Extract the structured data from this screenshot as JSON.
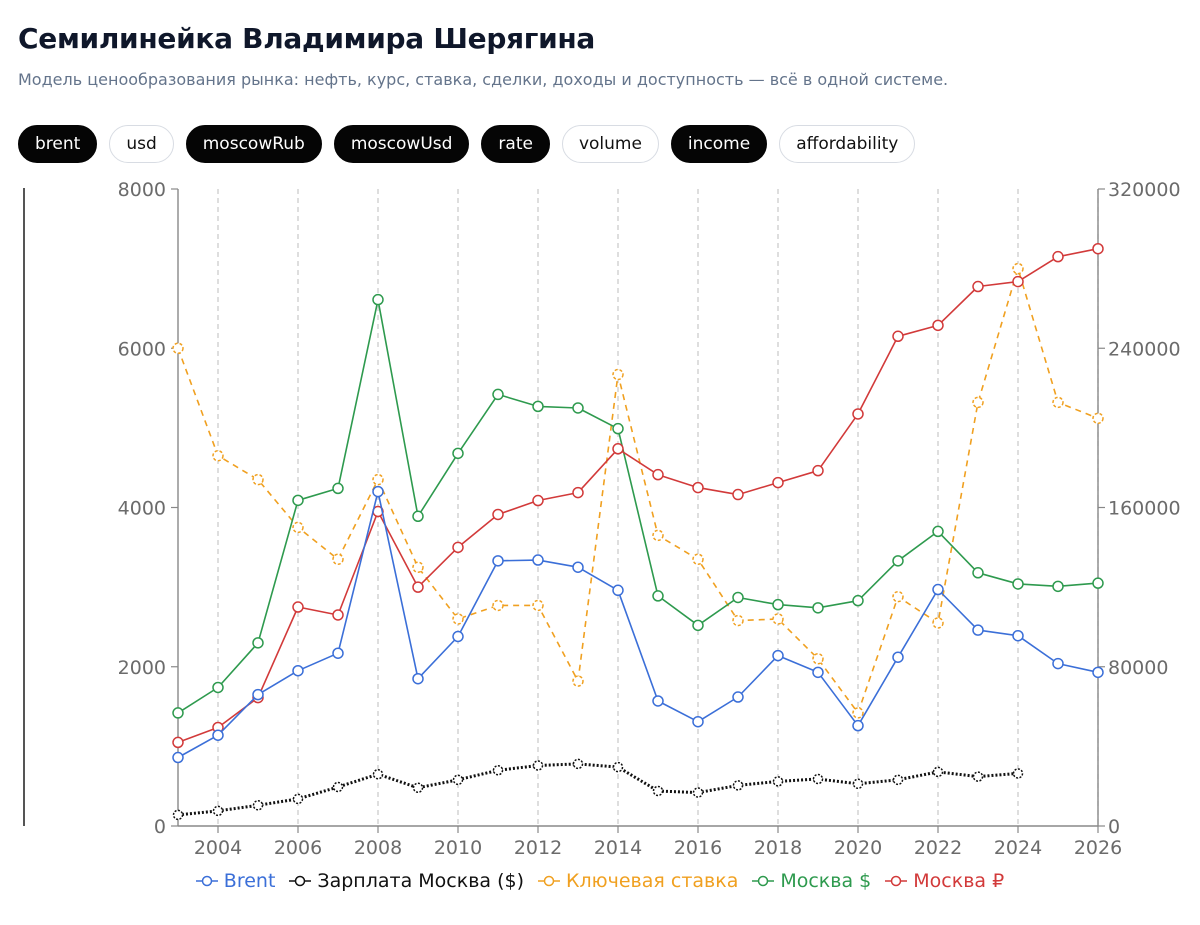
{
  "header": {
    "title": "Семилинейка Владимира Шерягина",
    "subtitle": "Модель ценообразования рынка: нефть, курс, ставка, сделки, доходы и доступность — всё в одной системе."
  },
  "toggles": [
    {
      "key": "brent",
      "label": "brent",
      "active": true
    },
    {
      "key": "usd",
      "label": "usd",
      "active": false
    },
    {
      "key": "moscowRub",
      "label": "moscowRub",
      "active": true
    },
    {
      "key": "moscowUsd",
      "label": "moscowUsd",
      "active": true
    },
    {
      "key": "rate",
      "label": "rate",
      "active": true
    },
    {
      "key": "volume",
      "label": "volume",
      "active": false
    },
    {
      "key": "income",
      "label": "income",
      "active": true
    },
    {
      "key": "affordability",
      "label": "affordability",
      "active": false
    }
  ],
  "chart_data": {
    "type": "line",
    "x": [
      2003,
      2004,
      2005,
      2006,
      2007,
      2008,
      2009,
      2010,
      2011,
      2012,
      2013,
      2014,
      2015,
      2016,
      2017,
      2018,
      2019,
      2020,
      2021,
      2022,
      2023,
      2024,
      2025,
      2026
    ],
    "xlim": [
      2003,
      2026
    ],
    "x_ticks": [
      "2004",
      "2006",
      "2008",
      "2010",
      "2012",
      "2014",
      "2016",
      "2018",
      "2020",
      "2022",
      "2024",
      "2026"
    ],
    "y_left": {
      "lim": [
        0,
        8000
      ],
      "ticks": [
        "0",
        "2000",
        "4000",
        "6000",
        "8000"
      ]
    },
    "y_right": {
      "lim": [
        0,
        320000
      ],
      "ticks": [
        "0",
        "80000",
        "160000",
        "240000",
        "320000"
      ]
    },
    "grid": "vertical dashed",
    "legend_position": "bottom-center",
    "series": [
      {
        "name": "Brent",
        "axis": "left",
        "color": "#3b6fd8",
        "style": "solid",
        "values": [
          860,
          1140,
          1650,
          1950,
          2170,
          4200,
          1850,
          2380,
          3330,
          3340,
          3250,
          2960,
          1570,
          1310,
          1620,
          2140,
          1930,
          1260,
          2120,
          2970,
          2460,
          2390,
          2040,
          1930
        ]
      },
      {
        "name": "Зарплата Москва ($)",
        "axis": "left",
        "color": "#111111",
        "style": "dotted",
        "values": [
          140,
          190,
          260,
          340,
          490,
          650,
          480,
          580,
          700,
          760,
          780,
          740,
          440,
          420,
          510,
          560,
          590,
          530,
          580,
          680,
          620,
          660,
          null,
          null
        ]
      },
      {
        "name": "Ключевая ставка",
        "axis": "left",
        "color": "#f0a020",
        "style": "dashed",
        "values": [
          6000,
          4650,
          4350,
          3750,
          3350,
          4350,
          3250,
          2600,
          2770,
          2770,
          1820,
          5670,
          3650,
          3350,
          2580,
          2600,
          2100,
          1420,
          2880,
          2550,
          5320,
          7000,
          5320,
          5120
        ]
      },
      {
        "name": "Москва $",
        "axis": "left",
        "color": "#2e9a4e",
        "style": "solid",
        "values": [
          1420,
          1740,
          2300,
          4090,
          4240,
          6610,
          3890,
          4680,
          5420,
          5270,
          5250,
          4990,
          2890,
          2520,
          2870,
          2780,
          2740,
          2830,
          3330,
          3700,
          3180,
          3040,
          3010,
          3050
        ]
      },
      {
        "name": "Москва ₽",
        "axis": "right",
        "color": "#d23a3a",
        "style": "solid",
        "values": [
          42000,
          49500,
          64500,
          110000,
          106000,
          158000,
          120000,
          140000,
          156500,
          163500,
          167500,
          189500,
          176500,
          170000,
          166500,
          172500,
          178500,
          207000,
          246000,
          251500,
          271000,
          273500,
          286000,
          290000
        ]
      }
    ]
  }
}
